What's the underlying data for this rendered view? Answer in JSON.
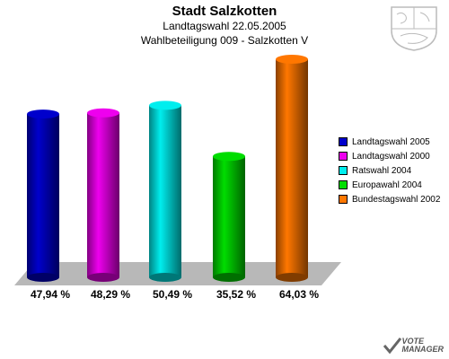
{
  "header": {
    "title": "Stadt Salzkotten",
    "subtitle": "Landtagswahl 22.05.2005",
    "subtitle2": "Wahlbeteiligung 009 - Salzkotten V"
  },
  "chart_data": {
    "type": "bar",
    "title": "Stadt Salzkotten",
    "categories": [
      "Landtagswahl 2005",
      "Landtagswahl 2000",
      "Ratswahl 2004",
      "Europawahl 2004",
      "Bundestagswahl 2002"
    ],
    "values": [
      47.94,
      48.29,
      50.49,
      35.52,
      64.03
    ],
    "value_labels": [
      "47,94 %",
      "48,29 %",
      "50,49 %",
      "35,52 %",
      "64,03 %"
    ],
    "colors": [
      "#0000cc",
      "#ee00ee",
      "#00eeee",
      "#00dd00",
      "#ff7700"
    ],
    "ylim": [
      0,
      70
    ],
    "legend_position": "right",
    "grid": false
  },
  "branding": {
    "logo_line1": "VOTE",
    "logo_line2": "MANAGER"
  }
}
